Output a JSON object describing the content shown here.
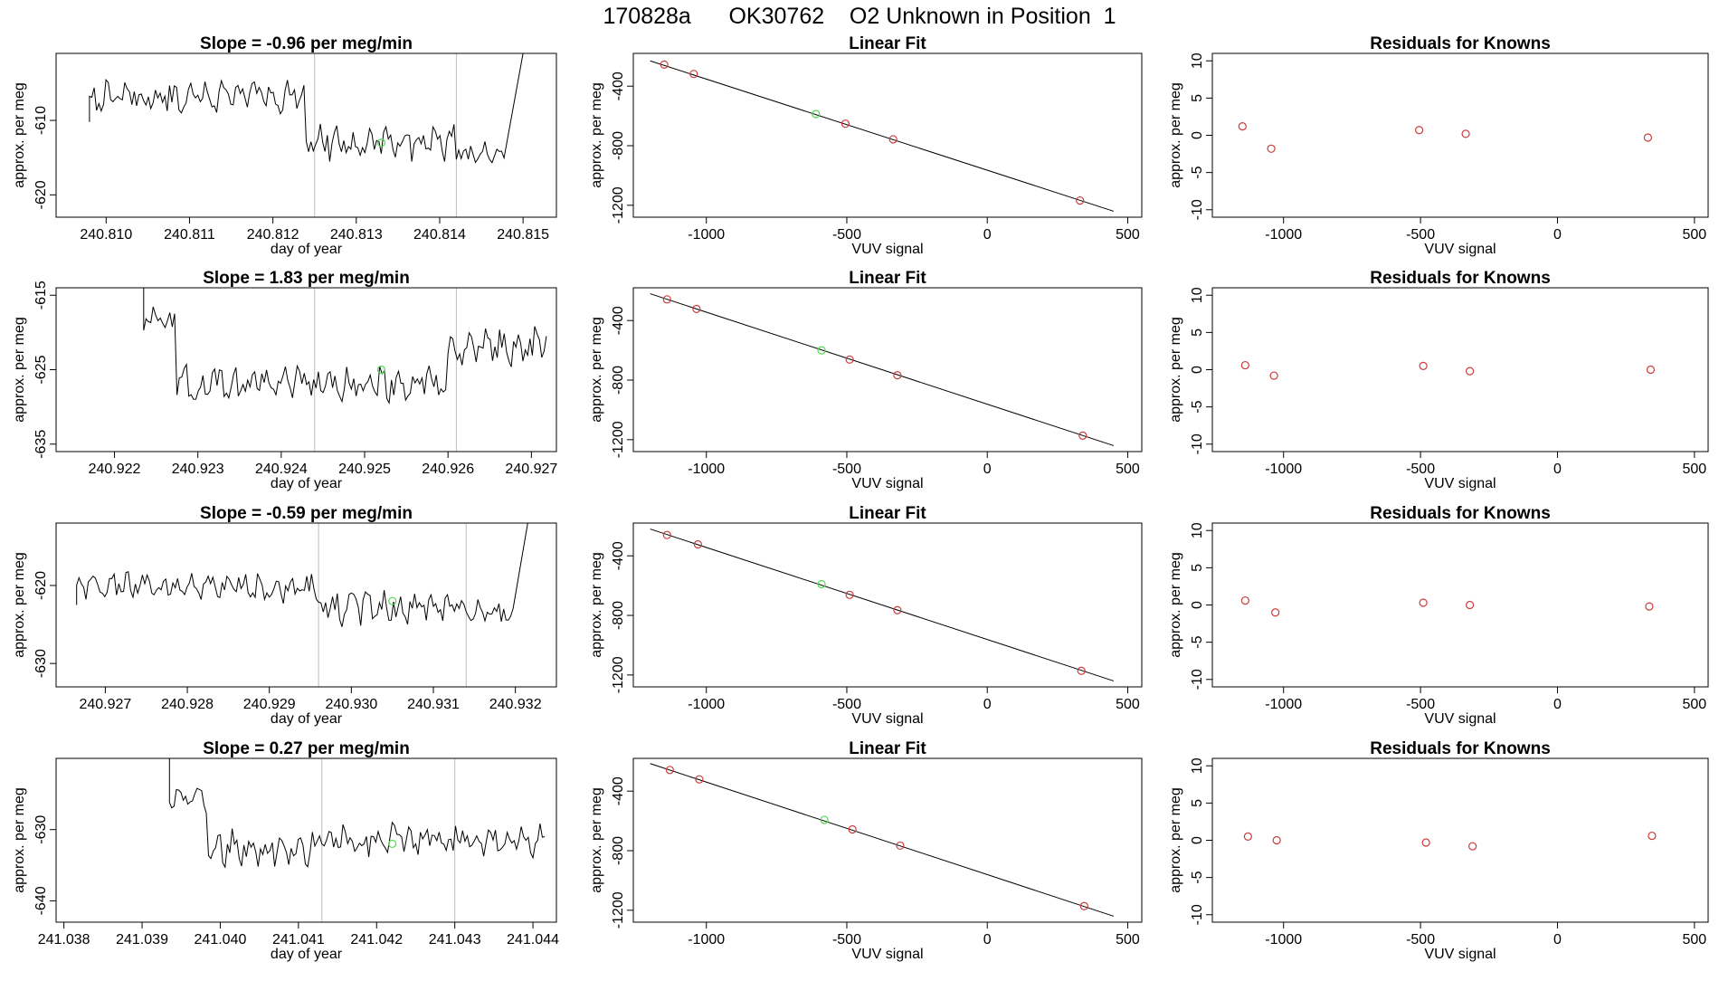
{
  "figure": {
    "title": "170828a      OK30762    O2 Unknown in Position  1"
  },
  "colors": {
    "trace": "#000000",
    "known_point": "#cd3b3b",
    "unknown_point": "#4ddb4d",
    "marker_line": "#bebebe",
    "fit_line": "#000000"
  },
  "chart_data": [
    {
      "type": "line",
      "title": "Slope =  -0.96  per meg/min",
      "xlabel": "day of year",
      "ylabel": "approx. per meg",
      "xlim": [
        240.8094,
        240.8154
      ],
      "ylim": [
        -623,
        -601
      ],
      "xticks": [
        "240.810",
        "240.811",
        "240.812",
        "240.813",
        "240.814",
        "240.815"
      ],
      "yticks": [
        "-620",
        "-610"
      ],
      "trace_start": [
        240.8098,
        -610.2
      ],
      "trace_end": [
        240.815,
        -601
      ],
      "trace_segments": [
        [
          240.8098,
          240.8124,
          -606.8,
          1.6,
          1
        ],
        [
          240.8124,
          240.8142,
          -613.0,
          1.8,
          2
        ],
        [
          240.8142,
          240.8148,
          -614.8,
          1.4,
          3
        ]
      ],
      "marker_lines": [
        240.8125,
        240.8142
      ],
      "unknown_point": [
        240.8133,
        -613.0
      ]
    },
    {
      "type": "scatter",
      "title": "Linear Fit",
      "xlabel": "VUV signal",
      "ylabel": "approx. per meg",
      "xlim": [
        -1260,
        550
      ],
      "ylim": [
        -1280,
        -180
      ],
      "xticks": [
        "-1000",
        "-500",
        "0",
        "500"
      ],
      "yticks": [
        "-1200",
        "-800",
        "-400"
      ],
      "fit_line": [
        [
          -1200,
          -230
        ],
        [
          450,
          -1240
        ]
      ],
      "knowns": [
        [
          -1150,
          -255
        ],
        [
          -1045,
          -318
        ],
        [
          -505,
          -652
        ],
        [
          -335,
          -757
        ],
        [
          330,
          -1168
        ]
      ],
      "unknown": [
        [
          -610,
          -587
        ]
      ]
    },
    {
      "type": "scatter",
      "title": "Residuals for Knowns",
      "xlabel": "VUV signal",
      "ylabel": "approx. per meg",
      "xlim": [
        -1260,
        550
      ],
      "ylim": [
        -11,
        11
      ],
      "xticks": [
        "-1000",
        "-500",
        "0",
        "500"
      ],
      "yticks": [
        "-10",
        "-5",
        "0",
        "5",
        "10"
      ],
      "points": [
        [
          -1150,
          1.2
        ],
        [
          -1045,
          -1.8
        ],
        [
          -505,
          0.7
        ],
        [
          -335,
          0.2
        ],
        [
          330,
          -0.3
        ]
      ]
    },
    {
      "type": "line",
      "title": "Slope =  1.83  per meg/min",
      "xlabel": "day of year",
      "ylabel": "approx. per meg",
      "xlim": [
        240.9213,
        240.9273
      ],
      "ylim": [
        -636,
        -614
      ],
      "xticks": [
        "240.922",
        "240.923",
        "240.924",
        "240.925",
        "240.926",
        "240.927"
      ],
      "yticks": [
        "-635",
        "-625",
        "-615"
      ],
      "trace_start": [
        240.92235,
        -614
      ],
      "trace_end": [
        240.92718,
        -620.5
      ],
      "trace_segments": [
        [
          240.92235,
          240.92275,
          -618.5,
          1.5,
          4
        ],
        [
          240.92275,
          240.926,
          -626.8,
          1.8,
          5
        ],
        [
          240.926,
          240.92718,
          -622.0,
          1.8,
          6
        ]
      ],
      "marker_lines": [
        240.9244,
        240.9261
      ],
      "unknown_point": [
        240.9252,
        -625.0
      ]
    },
    {
      "type": "scatter",
      "title": "Linear Fit",
      "xlabel": "VUV signal",
      "ylabel": "approx. per meg",
      "xlim": [
        -1260,
        550
      ],
      "ylim": [
        -1280,
        -180
      ],
      "xticks": [
        "-1000",
        "-500",
        "0",
        "500"
      ],
      "yticks": [
        "-1200",
        "-800",
        "-400"
      ],
      "fit_line": [
        [
          -1200,
          -220
        ],
        [
          450,
          -1240
        ]
      ],
      "knowns": [
        [
          -1140,
          -258
        ],
        [
          -1035,
          -322
        ],
        [
          -490,
          -662
        ],
        [
          -320,
          -767
        ],
        [
          340,
          -1173
        ]
      ],
      "unknown": [
        [
          -590,
          -600
        ]
      ]
    },
    {
      "type": "scatter",
      "title": "Residuals for Knowns",
      "xlabel": "VUV signal",
      "ylabel": "approx. per meg",
      "xlim": [
        -1260,
        550
      ],
      "ylim": [
        -11,
        11
      ],
      "xticks": [
        "-1000",
        "-500",
        "0",
        "500"
      ],
      "yticks": [
        "-10",
        "-5",
        "0",
        "5",
        "10"
      ],
      "points": [
        [
          -1140,
          0.6
        ],
        [
          -1035,
          -0.8
        ],
        [
          -490,
          0.5
        ],
        [
          -320,
          -0.2
        ],
        [
          340,
          0.0
        ]
      ]
    },
    {
      "type": "line",
      "title": "Slope =  -0.59  per meg/min",
      "xlabel": "day of year",
      "ylabel": "approx. per meg",
      "xlim": [
        240.9264,
        240.9325
      ],
      "ylim": [
        -633,
        -612
      ],
      "xticks": [
        "240.927",
        "240.928",
        "240.929",
        "240.930",
        "240.931",
        "240.932"
      ],
      "yticks": [
        "-630",
        "-620"
      ],
      "trace_start": [
        240.92665,
        -622.5
      ],
      "trace_end": [
        240.93215,
        -612
      ],
      "trace_segments": [
        [
          240.92665,
          240.9296,
          -620.2,
          1.4,
          7
        ],
        [
          240.9296,
          240.9314,
          -622.8,
          1.6,
          8
        ],
        [
          240.9314,
          240.932,
          -623.5,
          1.2,
          9
        ]
      ],
      "marker_lines": [
        240.9296,
        240.9314
      ],
      "unknown_point": [
        240.9305,
        -622.0
      ]
    },
    {
      "type": "scatter",
      "title": "Linear Fit",
      "xlabel": "VUV signal",
      "ylabel": "approx. per meg",
      "xlim": [
        -1260,
        550
      ],
      "ylim": [
        -1280,
        -180
      ],
      "xticks": [
        "-1000",
        "-500",
        "0",
        "500"
      ],
      "yticks": [
        "-1200",
        "-800",
        "-400"
      ],
      "fit_line": [
        [
          -1200,
          -220
        ],
        [
          450,
          -1240
        ]
      ],
      "knowns": [
        [
          -1140,
          -260
        ],
        [
          -1030,
          -323
        ],
        [
          -490,
          -662
        ],
        [
          -320,
          -765
        ],
        [
          335,
          -1172
        ]
      ],
      "unknown": [
        [
          -590,
          -590
        ]
      ]
    },
    {
      "type": "scatter",
      "title": "Residuals for Knowns",
      "xlabel": "VUV signal",
      "ylabel": "approx. per meg",
      "xlim": [
        -1260,
        550
      ],
      "ylim": [
        -11,
        11
      ],
      "points": [
        [
          -1140,
          0.6
        ],
        [
          -1030,
          -1.0
        ],
        [
          -490,
          0.3
        ],
        [
          -320,
          0.0
        ],
        [
          335,
          -0.2
        ]
      ],
      "xticks": [
        "-1000",
        "-500",
        "0",
        "500"
      ],
      "yticks": [
        "-10",
        "-5",
        "0",
        "5",
        "10"
      ]
    },
    {
      "type": "line",
      "title": "Slope =  0.27  per meg/min",
      "xlabel": "day of year",
      "ylabel": "approx. per meg",
      "xlim": [
        241.0379,
        241.0443
      ],
      "ylim": [
        -643,
        -620
      ],
      "xticks": [
        "241.038",
        "241.039",
        "241.040",
        "241.041",
        "241.042",
        "241.043",
        "241.044"
      ],
      "yticks": [
        "-640",
        "-630"
      ],
      "trace_start": [
        241.03935,
        -620
      ],
      "trace_end": [
        241.04415,
        -631
      ],
      "trace_segments": [
        [
          241.03935,
          241.03985,
          -625.5,
          1.6,
          10
        ],
        [
          241.03985,
          241.0413,
          -632.5,
          1.8,
          11
        ],
        [
          241.0413,
          241.04415,
          -631.5,
          1.6,
          12
        ]
      ],
      "marker_lines": [
        241.0413,
        241.043
      ],
      "unknown_point": [
        241.0422,
        -632.0
      ]
    },
    {
      "type": "scatter",
      "title": "Linear Fit",
      "xlabel": "VUV signal",
      "ylabel": "approx. per meg",
      "xlim": [
        -1260,
        550
      ],
      "ylim": [
        -1280,
        -180
      ],
      "xticks": [
        "-1000",
        "-500",
        "0",
        "500"
      ],
      "yticks": [
        "-1200",
        "-800",
        "-400"
      ],
      "fit_line": [
        [
          -1200,
          -215
        ],
        [
          450,
          -1240
        ]
      ],
      "knowns": [
        [
          -1130,
          -258
        ],
        [
          -1025,
          -321
        ],
        [
          -480,
          -657
        ],
        [
          -310,
          -766
        ],
        [
          345,
          -1172
        ]
      ],
      "unknown": [
        [
          -580,
          -593
        ]
      ]
    },
    {
      "type": "scatter",
      "title": "Residuals for Knowns",
      "xlabel": "VUV signal",
      "ylabel": "approx. per meg",
      "xlim": [
        -1260,
        550
      ],
      "ylim": [
        -11,
        11
      ],
      "xticks": [
        "-1000",
        "-500",
        "0",
        "500"
      ],
      "yticks": [
        "-10",
        "-5",
        "0",
        "5",
        "10"
      ],
      "points": [
        [
          -1130,
          0.5
        ],
        [
          -1025,
          0.0
        ],
        [
          -480,
          -0.3
        ],
        [
          -310,
          -0.8
        ],
        [
          345,
          0.6
        ]
      ]
    }
  ]
}
